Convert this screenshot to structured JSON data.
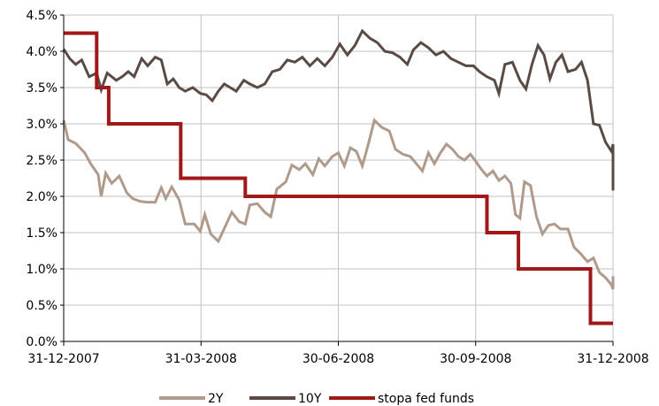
{
  "chart_data": {
    "type": "line",
    "x_range": [
      "2007-12-31",
      "2008-12-31"
    ],
    "ylim": [
      0,
      4.5
    ],
    "y_ticks": [
      "0.0%",
      "0.5%",
      "1.0%",
      "1.5%",
      "2.0%",
      "2.5%",
      "3.0%",
      "3.5%",
      "4.0%",
      "4.5%"
    ],
    "x_ticks": [
      "31-12-2007",
      "31-03-2008",
      "30-06-2008",
      "30-09-2008",
      "31-12-2008"
    ],
    "grid": true,
    "legend_position": "bottom",
    "series": [
      {
        "name": "2Y",
        "color": "#b09a8c",
        "points": [
          [
            "2007-12-31",
            3.05
          ],
          [
            "2008-01-03",
            2.78
          ],
          [
            "2008-01-08",
            2.73
          ],
          [
            "2008-01-14",
            2.6
          ],
          [
            "2008-01-18",
            2.45
          ],
          [
            "2008-01-23",
            2.3
          ],
          [
            "2008-01-25",
            2.0
          ],
          [
            "2008-01-28",
            2.32
          ],
          [
            "2008-02-01",
            2.18
          ],
          [
            "2008-02-06",
            2.28
          ],
          [
            "2008-02-11",
            2.05
          ],
          [
            "2008-02-15",
            1.97
          ],
          [
            "2008-02-20",
            1.93
          ],
          [
            "2008-02-25",
            1.92
          ],
          [
            "2008-03-01",
            1.92
          ],
          [
            "2008-03-05",
            2.12
          ],
          [
            "2008-03-08",
            1.97
          ],
          [
            "2008-03-12",
            2.13
          ],
          [
            "2008-03-17",
            1.95
          ],
          [
            "2008-03-21",
            1.62
          ],
          [
            "2008-03-27",
            1.62
          ],
          [
            "2008-03-31",
            1.52
          ],
          [
            "2008-04-03",
            1.75
          ],
          [
            "2008-04-07",
            1.48
          ],
          [
            "2008-04-12",
            1.38
          ],
          [
            "2008-04-17",
            1.6
          ],
          [
            "2008-04-21",
            1.78
          ],
          [
            "2008-04-26",
            1.65
          ],
          [
            "2008-04-30",
            1.62
          ],
          [
            "2008-05-03",
            1.88
          ],
          [
            "2008-05-08",
            1.9
          ],
          [
            "2008-05-13",
            1.78
          ],
          [
            "2008-05-17",
            1.72
          ],
          [
            "2008-05-21",
            2.1
          ],
          [
            "2008-05-27",
            2.2
          ],
          [
            "2008-05-31",
            2.43
          ],
          [
            "2008-06-05",
            2.37
          ],
          [
            "2008-06-09",
            2.45
          ],
          [
            "2008-06-14",
            2.3
          ],
          [
            "2008-06-18",
            2.52
          ],
          [
            "2008-06-22",
            2.42
          ],
          [
            "2008-06-27",
            2.55
          ],
          [
            "2008-07-01",
            2.6
          ],
          [
            "2008-07-05",
            2.42
          ],
          [
            "2008-07-09",
            2.67
          ],
          [
            "2008-07-13",
            2.62
          ],
          [
            "2008-07-17",
            2.42
          ],
          [
            "2008-07-21",
            2.72
          ],
          [
            "2008-07-25",
            3.05
          ],
          [
            "2008-07-30",
            2.95
          ],
          [
            "2008-08-04",
            2.9
          ],
          [
            "2008-08-08",
            2.65
          ],
          [
            "2008-08-13",
            2.58
          ],
          [
            "2008-08-18",
            2.55
          ],
          [
            "2008-08-22",
            2.45
          ],
          [
            "2008-08-26",
            2.35
          ],
          [
            "2008-08-30",
            2.6
          ],
          [
            "2008-09-03",
            2.45
          ],
          [
            "2008-09-07",
            2.6
          ],
          [
            "2008-09-11",
            2.72
          ],
          [
            "2008-09-15",
            2.65
          ],
          [
            "2008-09-19",
            2.55
          ],
          [
            "2008-09-23",
            2.5
          ],
          [
            "2008-09-27",
            2.58
          ],
          [
            "2008-09-30",
            2.5
          ],
          [
            "2008-10-04",
            2.38
          ],
          [
            "2008-10-08",
            2.28
          ],
          [
            "2008-10-12",
            2.35
          ],
          [
            "2008-10-16",
            2.22
          ],
          [
            "2008-10-20",
            2.28
          ],
          [
            "2008-10-24",
            2.18
          ],
          [
            "2008-10-27",
            1.75
          ],
          [
            "2008-10-30",
            1.7
          ],
          [
            "2008-11-02",
            2.2
          ],
          [
            "2008-11-06",
            2.15
          ],
          [
            "2008-11-10",
            1.72
          ],
          [
            "2008-11-14",
            1.48
          ],
          [
            "2008-11-18",
            1.6
          ],
          [
            "2008-11-22",
            1.62
          ],
          [
            "2008-11-26",
            1.55
          ],
          [
            "2008-12-01",
            1.55
          ],
          [
            "2008-12-05",
            1.3
          ],
          [
            "2008-12-09",
            1.22
          ],
          [
            "2008-12-14",
            1.1
          ],
          [
            "2008-12-18",
            1.15
          ],
          [
            "2008-12-22",
            0.95
          ],
          [
            "2008-12-26",
            0.88
          ],
          [
            "2008-12-30",
            0.78
          ],
          [
            "2009-01-03",
            0.72
          ],
          [
            "2009-01-08",
            0.9
          ],
          [
            "2009-01-14",
            0.75
          ],
          [
            "2009-01-17",
            0.78
          ]
        ]
      },
      {
        "name": "10Y",
        "color": "#5a4a44",
        "points": [
          [
            "2007-12-31",
            4.03
          ],
          [
            "2008-01-04",
            3.9
          ],
          [
            "2008-01-08",
            3.82
          ],
          [
            "2008-01-12",
            3.88
          ],
          [
            "2008-01-17",
            3.65
          ],
          [
            "2008-01-22",
            3.7
          ],
          [
            "2008-01-25",
            3.47
          ],
          [
            "2008-01-29",
            3.7
          ],
          [
            "2008-02-04",
            3.6
          ],
          [
            "2008-02-08",
            3.65
          ],
          [
            "2008-02-12",
            3.72
          ],
          [
            "2008-02-16",
            3.65
          ],
          [
            "2008-02-21",
            3.9
          ],
          [
            "2008-02-25",
            3.8
          ],
          [
            "2008-03-01",
            3.92
          ],
          [
            "2008-03-05",
            3.88
          ],
          [
            "2008-03-09",
            3.55
          ],
          [
            "2008-03-13",
            3.62
          ],
          [
            "2008-03-17",
            3.5
          ],
          [
            "2008-03-21",
            3.45
          ],
          [
            "2008-03-26",
            3.5
          ],
          [
            "2008-03-31",
            3.42
          ],
          [
            "2008-04-04",
            3.4
          ],
          [
            "2008-04-08",
            3.32
          ],
          [
            "2008-04-12",
            3.45
          ],
          [
            "2008-04-16",
            3.55
          ],
          [
            "2008-04-20",
            3.5
          ],
          [
            "2008-04-24",
            3.45
          ],
          [
            "2008-04-29",
            3.6
          ],
          [
            "2008-05-03",
            3.55
          ],
          [
            "2008-05-08",
            3.5
          ],
          [
            "2008-05-13",
            3.55
          ],
          [
            "2008-05-18",
            3.72
          ],
          [
            "2008-05-23",
            3.75
          ],
          [
            "2008-05-28",
            3.88
          ],
          [
            "2008-06-02",
            3.85
          ],
          [
            "2008-06-07",
            3.92
          ],
          [
            "2008-06-12",
            3.8
          ],
          [
            "2008-06-17",
            3.9
          ],
          [
            "2008-06-22",
            3.8
          ],
          [
            "2008-06-27",
            3.92
          ],
          [
            "2008-07-02",
            4.1
          ],
          [
            "2008-07-07",
            3.95
          ],
          [
            "2008-07-12",
            4.08
          ],
          [
            "2008-07-17",
            4.28
          ],
          [
            "2008-07-22",
            4.18
          ],
          [
            "2008-07-27",
            4.12
          ],
          [
            "2008-08-01",
            4.0
          ],
          [
            "2008-08-06",
            3.98
          ],
          [
            "2008-08-11",
            3.92
          ],
          [
            "2008-08-16",
            3.82
          ],
          [
            "2008-08-20",
            4.02
          ],
          [
            "2008-08-25",
            4.12
          ],
          [
            "2008-08-30",
            4.05
          ],
          [
            "2008-09-04",
            3.95
          ],
          [
            "2008-09-09",
            4.0
          ],
          [
            "2008-09-14",
            3.9
          ],
          [
            "2008-09-19",
            3.85
          ],
          [
            "2008-09-24",
            3.8
          ],
          [
            "2008-09-29",
            3.8
          ],
          [
            "2008-10-03",
            3.72
          ],
          [
            "2008-10-08",
            3.65
          ],
          [
            "2008-10-13",
            3.6
          ],
          [
            "2008-10-16",
            3.42
          ],
          [
            "2008-10-20",
            3.82
          ],
          [
            "2008-10-25",
            3.85
          ],
          [
            "2008-10-30",
            3.6
          ],
          [
            "2008-11-03",
            3.48
          ],
          [
            "2008-11-07",
            3.82
          ],
          [
            "2008-11-11",
            4.08
          ],
          [
            "2008-11-15",
            3.95
          ],
          [
            "2008-11-19",
            3.62
          ],
          [
            "2008-11-23",
            3.85
          ],
          [
            "2008-11-27",
            3.95
          ],
          [
            "2008-12-01",
            3.72
          ],
          [
            "2008-12-06",
            3.75
          ],
          [
            "2008-12-10",
            3.85
          ],
          [
            "2008-12-14",
            3.6
          ],
          [
            "2008-12-18",
            3.0
          ],
          [
            "2008-12-22",
            2.98
          ],
          [
            "2008-12-26",
            2.75
          ],
          [
            "2008-12-30",
            2.62
          ],
          [
            "2009-01-03",
            2.72
          ],
          [
            "2009-01-06",
            2.58
          ],
          [
            "2009-01-09",
            2.25
          ],
          [
            "2009-01-12",
            2.12
          ],
          [
            "2009-01-15",
            2.08
          ],
          [
            "2009-01-17",
            2.22
          ]
        ]
      },
      {
        "name": "stopa fed funds",
        "color": "#a01818",
        "step": true,
        "points": [
          [
            "2007-12-31",
            4.25
          ],
          [
            "2008-01-22",
            3.5
          ],
          [
            "2008-01-30",
            3.0
          ],
          [
            "2008-03-18",
            2.25
          ],
          [
            "2008-04-30",
            2.0
          ],
          [
            "2008-10-08",
            1.5
          ],
          [
            "2008-10-29",
            1.0
          ],
          [
            "2008-12-16",
            0.25
          ],
          [
            "2009-01-17",
            0.25
          ]
        ]
      }
    ]
  }
}
